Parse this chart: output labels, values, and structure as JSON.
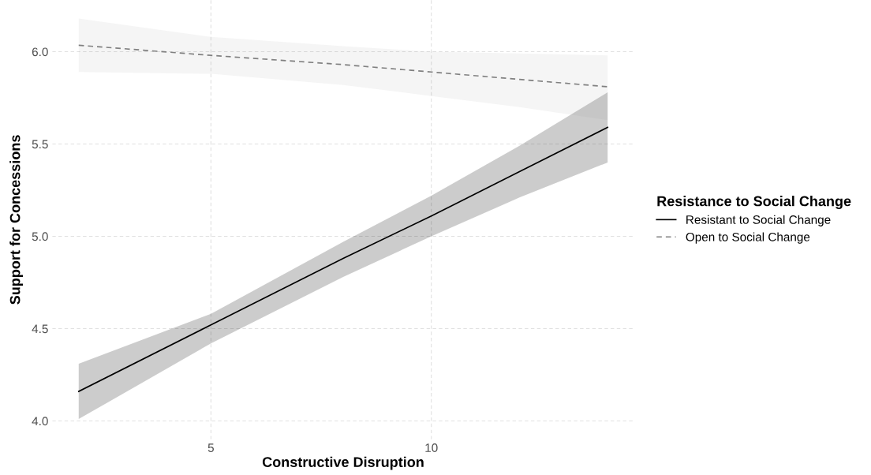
{
  "chart_data": {
    "type": "line",
    "xlabel": "Constructive Disruption",
    "ylabel": "Support for Concessions",
    "legend_title": "Resistance to Social Change",
    "xlim": [
      1.4,
      14.6
    ],
    "ylim": [
      3.9,
      6.28
    ],
    "xticks": [
      5,
      10
    ],
    "yticks": [
      {
        "value": 4,
        "label": "4.0"
      },
      {
        "value": 4.5,
        "label": "4.5"
      },
      {
        "value": 5,
        "label": "5.0"
      },
      {
        "value": 5.5,
        "label": "5.5"
      },
      {
        "value": 6,
        "label": "6.0"
      }
    ],
    "grid": true,
    "legend": "right",
    "series": [
      {
        "name": "Resistant to Social Change",
        "color": "#000000",
        "line_style": "solid",
        "x": [
          2,
          5,
          8,
          10,
          12,
          14
        ],
        "values": [
          4.16,
          4.52,
          4.88,
          5.11,
          5.35,
          5.59
        ],
        "lower": [
          4.01,
          4.42,
          4.78,
          5.0,
          5.21,
          5.4
        ],
        "upper": [
          4.31,
          4.58,
          4.97,
          5.22,
          5.49,
          5.78
        ]
      },
      {
        "name": "Open to Social Change",
        "color": "#808080",
        "line_style": "dashed",
        "x": [
          2,
          5,
          8,
          10,
          12,
          14
        ],
        "values": [
          6.035,
          5.98,
          5.93,
          5.89,
          5.85,
          5.81
        ],
        "lower": [
          5.89,
          5.88,
          5.82,
          5.76,
          5.7,
          5.63
        ],
        "upper": [
          6.18,
          6.08,
          6.03,
          6.0,
          5.99,
          5.98
        ]
      }
    ]
  }
}
